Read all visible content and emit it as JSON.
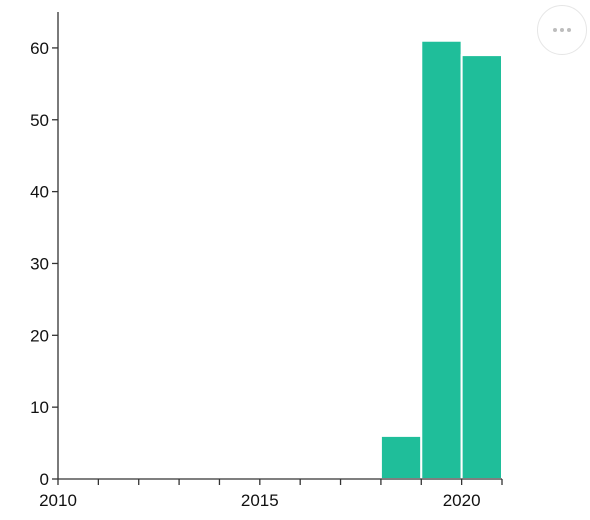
{
  "chart_data": {
    "type": "bar",
    "title": "",
    "xlabel": "",
    "ylabel": "",
    "xlim": [
      2010,
      2021
    ],
    "ylim": [
      0,
      65
    ],
    "x_ticks": [
      2010,
      2011,
      2012,
      2013,
      2014,
      2015,
      2016,
      2017,
      2018,
      2019,
      2020,
      2021
    ],
    "x_tick_labels": [
      {
        "value": 2010,
        "label": "2010"
      },
      {
        "value": 2015,
        "label": "2015"
      },
      {
        "value": 2020,
        "label": "2020"
      }
    ],
    "y_ticks": [
      0,
      10,
      20,
      30,
      40,
      50,
      60
    ],
    "y_tick_labels": [
      "0",
      "10",
      "20",
      "30",
      "40",
      "50",
      "60"
    ],
    "bars": [
      {
        "x0": 2018,
        "x1": 2019,
        "value": 6
      },
      {
        "x0": 2019,
        "x1": 2020,
        "value": 61
      },
      {
        "x0": 2020,
        "x1": 2021,
        "value": 59
      }
    ],
    "bar_color": "#1fbe9a",
    "grid": false
  },
  "toolbar": {
    "menu_icon": "more-horizontal-icon"
  }
}
